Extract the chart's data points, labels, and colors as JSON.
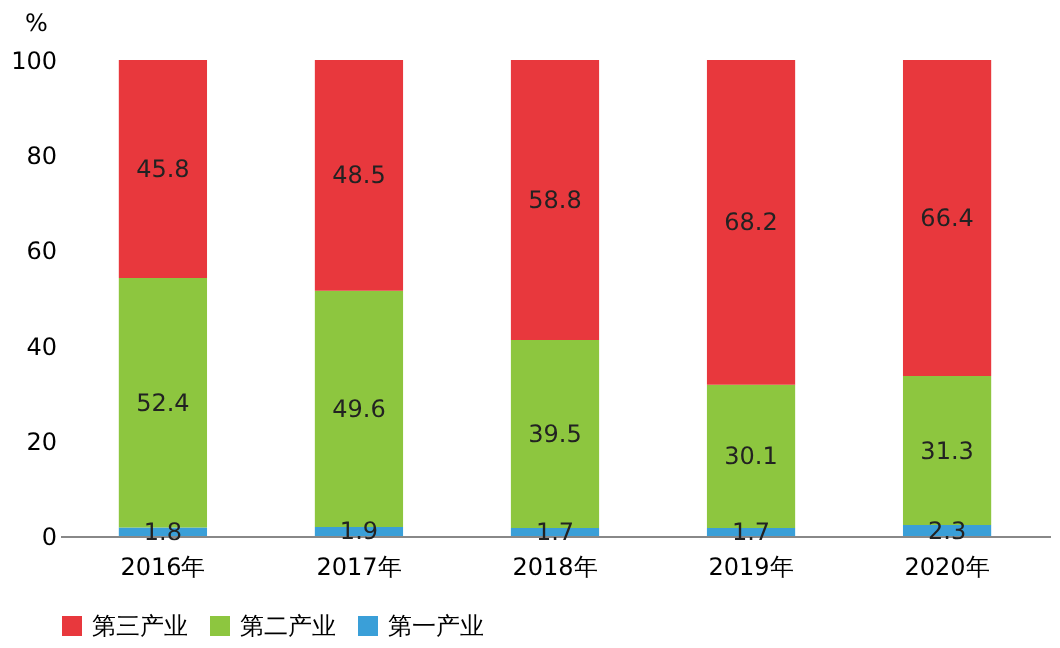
{
  "chart_data": {
    "type": "bar",
    "stacked": true,
    "ylabel": "%",
    "categories": [
      "2016年",
      "2017年",
      "2018年",
      "2019年",
      "2020年"
    ],
    "series": [
      {
        "name": "第一产业",
        "color": "#3a9fd8",
        "values": [
          1.8,
          1.9,
          1.7,
          1.7,
          2.3
        ]
      },
      {
        "name": "第二产业",
        "color": "#8dc63f",
        "values": [
          52.4,
          49.6,
          39.5,
          30.1,
          31.3
        ]
      },
      {
        "name": "第三产业",
        "color": "#e8383d",
        "values": [
          45.8,
          48.5,
          58.8,
          68.2,
          66.4
        ]
      }
    ],
    "ylim": [
      0,
      100
    ],
    "yticks": [
      0,
      20,
      40,
      60,
      80,
      100
    ],
    "data_labels": true,
    "legend": "bottom",
    "grid": false
  }
}
